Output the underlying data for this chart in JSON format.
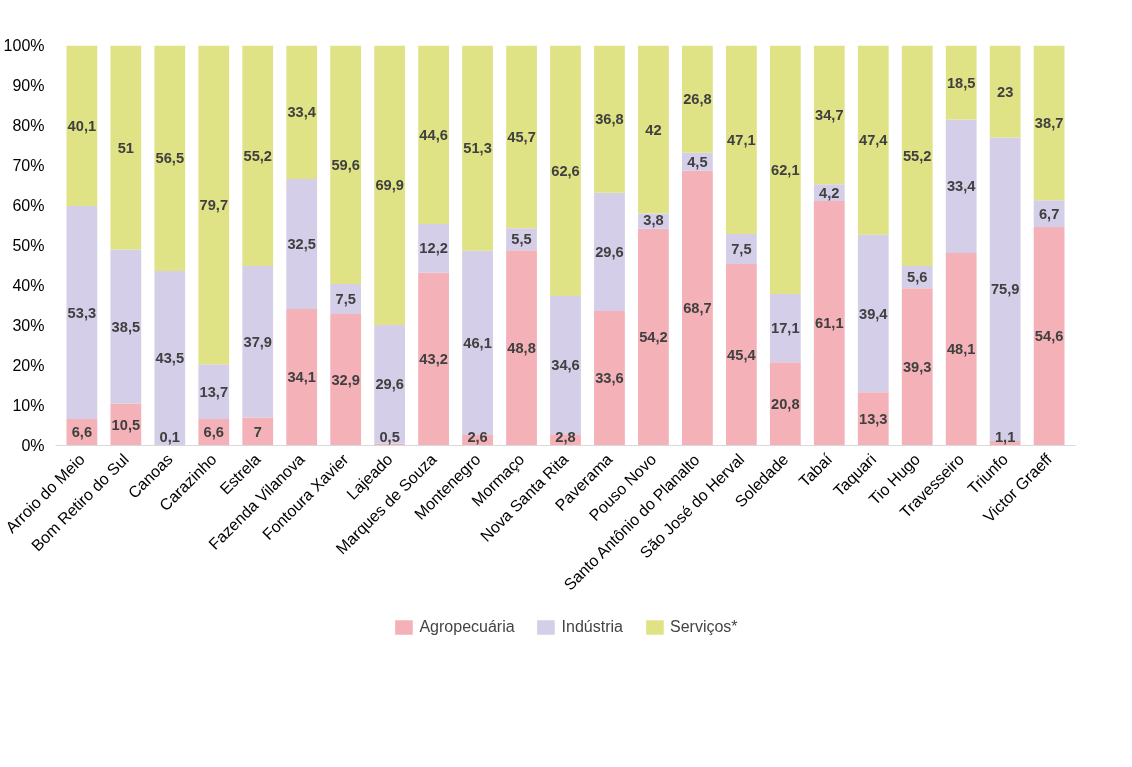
{
  "chart_data": {
    "type": "bar",
    "stacked": true,
    "categories": [
      "Arroio do Meio",
      "Bom Retiro do Sul",
      "Canoas",
      "Carazinho",
      "Estrela",
      "Fazenda Vilanova",
      "Fontoura Xavier",
      "Lajeado",
      "Marques de Souza",
      "Montenegro",
      "Mormaço",
      "Nova Santa Rita",
      "Paverama",
      "Pouso Novo",
      "Santo Antônio do Planalto",
      "São José do Herval",
      "Soledade",
      "Tabaí",
      "Taquari",
      "Tio Hugo",
      "Travesseiro",
      "Triunfo",
      "Victor Graeff"
    ],
    "series": [
      {
        "name": "Agropecuária",
        "color": "#f4b1b7",
        "values": [
          6.6,
          10.5,
          0.1,
          6.6,
          7,
          34.1,
          32.9,
          0.5,
          43.2,
          2.6,
          48.8,
          2.8,
          33.6,
          54.2,
          68.7,
          45.4,
          20.8,
          61.1,
          13.3,
          39.3,
          48.1,
          1.1,
          54.6
        ],
        "value_labels": [
          "6,6",
          "10,5",
          "0,1",
          "6,6",
          "7",
          "34,1",
          "32,9",
          "0,5",
          "43,2",
          "2,6",
          "48,8",
          "2,8",
          "33,6",
          "54,2",
          "68,7",
          "45,4",
          "20,8",
          "61,1",
          "13,3",
          "39,3",
          "48,1",
          "1,1",
          "54,6"
        ]
      },
      {
        "name": "Indústria",
        "color": "#d4cee8",
        "values": [
          53.3,
          38.5,
          43.5,
          13.7,
          37.9,
          32.5,
          7.5,
          29.6,
          12.2,
          46.1,
          5.5,
          34.6,
          29.6,
          3.8,
          4.5,
          7.5,
          17.1,
          4.2,
          39.4,
          5.6,
          33.4,
          75.9,
          6.7
        ],
        "value_labels": [
          "53,3",
          "38,5",
          "43,5",
          "13,7",
          "37,9",
          "32,5",
          "7,5",
          "29,6",
          "12,2",
          "46,1",
          "5,5",
          "34,6",
          "29,6",
          "3,8",
          "4,5",
          "7,5",
          "17,1",
          "4,2",
          "39,4",
          "5,6",
          "33,4",
          "75,9",
          "6,7"
        ]
      },
      {
        "name": "Serviços*",
        "color": "#dfe385",
        "values": [
          40.1,
          51,
          56.5,
          79.7,
          55.2,
          33.4,
          59.6,
          69.9,
          44.6,
          51.3,
          45.7,
          62.6,
          36.8,
          42,
          26.8,
          47.1,
          62.1,
          34.7,
          47.4,
          55.2,
          18.5,
          23,
          38.7
        ],
        "value_labels": [
          "40,1",
          "51",
          "56,5",
          "79,7",
          "55,2",
          "33,4",
          "59,6",
          "69,9",
          "44,6",
          "51,3",
          "45,7",
          "62,6",
          "36,8",
          "42",
          "26,8",
          "47,1",
          "62,1",
          "34,7",
          "47,4",
          "55,2",
          "18,5",
          "23",
          "38,7"
        ]
      }
    ],
    "ylim": [
      0,
      100
    ],
    "yticks": [
      {
        "value": 0,
        "label": "0%"
      },
      {
        "value": 10,
        "label": "10%"
      },
      {
        "value": 20,
        "label": "20%"
      },
      {
        "value": 30,
        "label": "30%"
      },
      {
        "value": 40,
        "label": "40%"
      },
      {
        "value": 50,
        "label": "50%"
      },
      {
        "value": 60,
        "label": "60%"
      },
      {
        "value": 70,
        "label": "70%"
      },
      {
        "value": 80,
        "label": "80%"
      },
      {
        "value": 90,
        "label": "90%"
      },
      {
        "value": 100,
        "label": "100%"
      }
    ],
    "grid": false,
    "legend": "bottom"
  }
}
